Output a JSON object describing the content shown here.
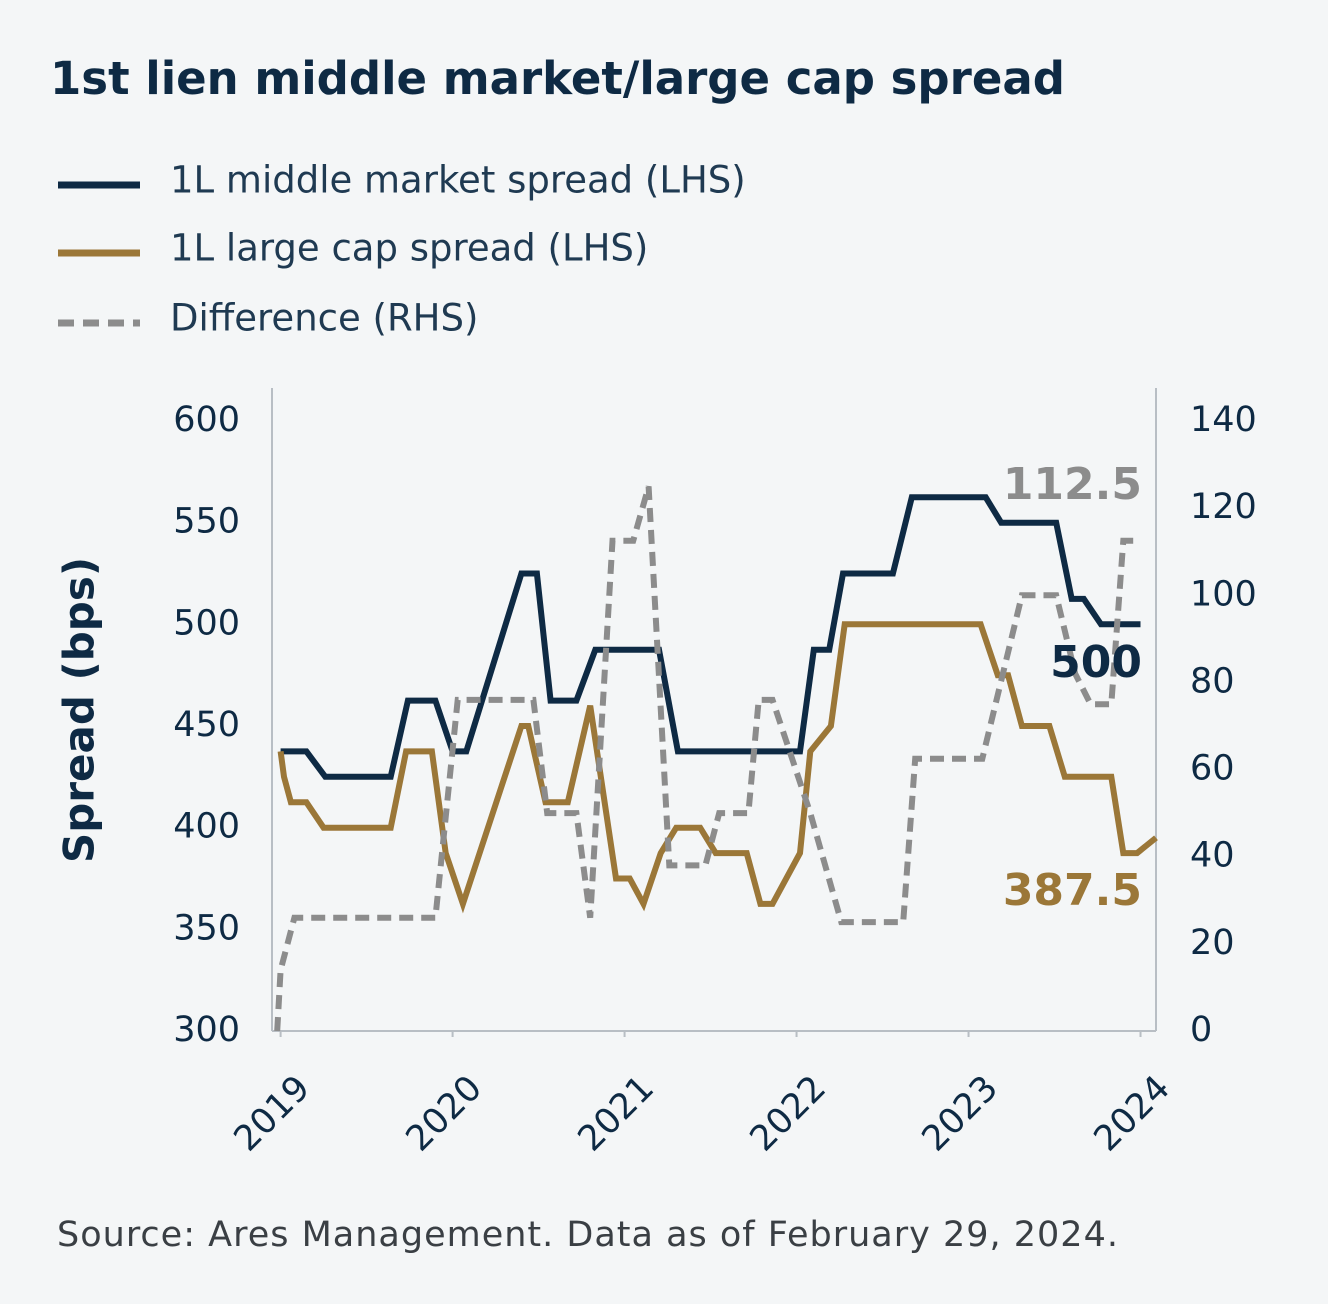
{
  "chart_data": {
    "type": "line",
    "title": "1st lien middle market/large cap spread",
    "y_label": "Spread (bps)",
    "source": "Source: Ares Management. Data as of February 29, 2024.",
    "xlim": [
      2018.95,
      2024.09
    ],
    "xticks": [
      2019,
      2020,
      2021,
      2022,
      2023,
      2024
    ],
    "ylim": [
      300,
      600
    ],
    "yticks": [
      300,
      350,
      400,
      450,
      500,
      550,
      600
    ],
    "y2lim": [
      0,
      140
    ],
    "y2ticks": [
      0,
      20,
      40,
      60,
      80,
      100,
      120,
      140
    ],
    "grid": false,
    "series": [
      {
        "name": "1L middle market spread (LHS)",
        "color": "#0e2a44",
        "dash": false,
        "x": [
          2019.0,
          2019.15,
          2019.26,
          2019.64,
          2019.74,
          2019.9,
          2020.0,
          2020.08,
          2020.4,
          2020.49,
          2020.57,
          2020.72,
          2020.83,
          2021.2,
          2021.31,
          2022.02,
          2022.1,
          2022.19,
          2022.27,
          2022.56,
          2022.67,
          2023.1,
          2023.19,
          2023.51,
          2023.6,
          2023.67,
          2023.77,
          2024.0
        ],
        "values": [
          437.5,
          437.5,
          425,
          425,
          462.5,
          462.5,
          437.5,
          437.5,
          525,
          525,
          462.5,
          462.5,
          487.5,
          487.5,
          437.5,
          437.5,
          487.5,
          487.5,
          525,
          525,
          562.5,
          562.5,
          550,
          550,
          512.5,
          512.5,
          500,
          500
        ]
      },
      {
        "name": "1L large cap spread (LHS)",
        "color": "#9b7738",
        "dash": false,
        "x": [
          2019.0,
          2019.02,
          2019.06,
          2019.15,
          2019.25,
          2019.64,
          2019.73,
          2019.88,
          2019.96,
          2020.06,
          2020.4,
          2020.44,
          2020.54,
          2020.67,
          2020.8,
          2020.95,
          2021.03,
          2021.11,
          2021.21,
          2021.3,
          2021.44,
          2021.53,
          2021.71,
          2021.79,
          2021.86,
          2022.02,
          2022.08,
          2022.2,
          2022.28,
          2023.07,
          2023.17,
          2023.23,
          2023.31,
          2023.47,
          2023.56,
          2023.83,
          2023.9,
          2023.98,
          2024.09
        ],
        "values": [
          437.5,
          425,
          412.5,
          412.5,
          400,
          400,
          437.5,
          437.5,
          387.5,
          362.5,
          450,
          450,
          412.5,
          412.5,
          460,
          375,
          375,
          362.5,
          387.5,
          400,
          400,
          387.5,
          387.5,
          362.5,
          362.5,
          387.5,
          437.5,
          450,
          500,
          500,
          475,
          475,
          450,
          450,
          425,
          425,
          387.5,
          387.5,
          395
        ]
      },
      {
        "name": "Difference (RHS)",
        "color": "#8c8c8c",
        "dash": true,
        "axis": "y2",
        "x": [
          2018.98,
          2019.0,
          2019.08,
          2019.9,
          2020.03,
          2020.47,
          2020.55,
          2020.72,
          2020.8,
          2020.93,
          2021.05,
          2021.14,
          2021.26,
          2021.47,
          2021.55,
          2021.72,
          2021.78,
          2021.86,
          2022.08,
          2022.26,
          2022.62,
          2022.69,
          2023.08,
          2023.31,
          2023.51,
          2023.62,
          2023.71,
          2023.83,
          2023.9,
          2024.0
        ],
        "values": [
          0,
          14,
          26,
          26,
          76,
          76,
          50,
          50,
          26,
          112.5,
          112.5,
          125,
          38,
          38,
          50,
          50,
          76,
          76,
          50,
          25,
          25,
          62.5,
          62.5,
          100,
          100,
          82,
          75,
          75,
          112.5,
          112.5
        ]
      }
    ],
    "annotations": [
      "112.5",
      "500",
      "387.5"
    ]
  }
}
